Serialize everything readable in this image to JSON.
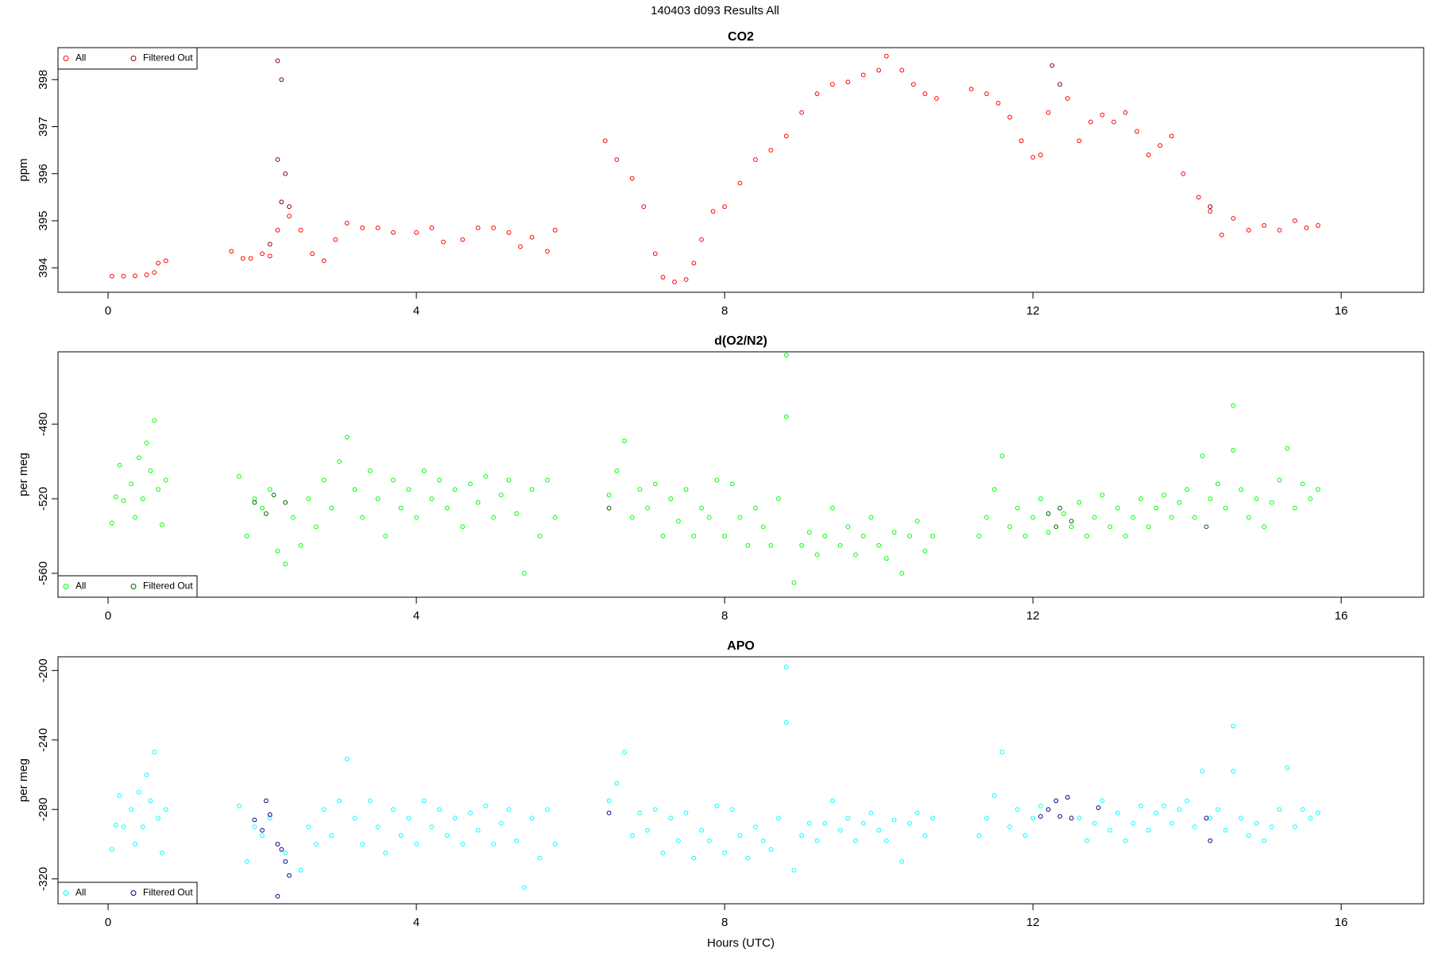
{
  "title": "140403   d093   Results All",
  "chart_data": [
    {
      "type": "scatter",
      "title": "CO2",
      "ylabel": "ppm",
      "legend": "upper left",
      "xlim": [
        -0.65,
        17.07
      ],
      "xticks": [
        0,
        4,
        8,
        12,
        16
      ],
      "ylim": [
        393.48,
        398.68
      ],
      "yticks": [
        394,
        395,
        396,
        397,
        398
      ],
      "series": [
        {
          "name": "All",
          "color": "#ff0000",
          "x": [
            0.05,
            0.2,
            0.35,
            0.5,
            0.6,
            0.65,
            0.75,
            1.6,
            1.75,
            1.85,
            2.0,
            2.1,
            2.2,
            2.35,
            2.5,
            2.65,
            2.8,
            2.95,
            3.1,
            3.3,
            3.5,
            3.7,
            4.0,
            4.2,
            4.35,
            4.6,
            4.8,
            5.0,
            5.2,
            5.35,
            5.5,
            5.7,
            5.8,
            6.45,
            6.6,
            6.8,
            6.95,
            7.1,
            7.2,
            7.35,
            7.5,
            7.6,
            7.7,
            7.85,
            8.0,
            8.2,
            8.4,
            8.6,
            8.8,
            9.0,
            9.2,
            9.4,
            9.6,
            9.8,
            10.0,
            10.1,
            10.3,
            10.45,
            10.6,
            10.75,
            11.2,
            11.4,
            11.55,
            11.7,
            11.85,
            12.0,
            12.1,
            12.2,
            12.45,
            12.6,
            12.75,
            12.9,
            13.05,
            13.2,
            13.35,
            13.5,
            13.65,
            13.8,
            13.95,
            14.15,
            14.3,
            14.45,
            14.6,
            14.8,
            15.0,
            15.2,
            15.4,
            15.55,
            15.7
          ],
          "values": [
            393.82,
            393.82,
            393.83,
            393.85,
            393.9,
            394.1,
            394.15,
            394.35,
            394.2,
            394.2,
            394.3,
            394.25,
            394.8,
            395.1,
            394.8,
            394.3,
            394.15,
            394.6,
            394.95,
            394.85,
            394.85,
            394.75,
            394.75,
            394.85,
            394.55,
            394.6,
            394.85,
            394.85,
            394.75,
            394.45,
            394.65,
            394.35,
            394.8,
            396.7,
            396.3,
            395.9,
            395.3,
            394.3,
            393.8,
            393.7,
            393.75,
            394.1,
            394.6,
            395.2,
            395.3,
            395.8,
            396.3,
            396.5,
            396.8,
            397.3,
            397.7,
            397.9,
            397.95,
            398.1,
            398.2,
            398.5,
            398.2,
            397.9,
            397.7,
            397.6,
            397.8,
            397.7,
            397.5,
            397.2,
            396.7,
            396.35,
            396.4,
            397.3,
            397.6,
            396.7,
            397.1,
            397.25,
            397.1,
            397.3,
            396.9,
            396.4,
            396.6,
            396.8,
            396.0,
            395.5,
            395.2,
            394.7,
            395.05,
            394.8,
            394.9,
            394.8,
            395.0,
            394.85,
            394.9
          ]
        },
        {
          "name": "Filtered Out",
          "color": "#8b0000",
          "x": [
            2.2,
            2.25,
            2.2,
            2.3,
            2.25,
            2.35,
            2.1,
            12.25,
            12.35,
            14.3
          ],
          "values": [
            398.4,
            398.0,
            396.3,
            396.0,
            395.4,
            395.3,
            394.5,
            398.3,
            397.9,
            395.3
          ]
        }
      ]
    },
    {
      "type": "scatter",
      "title": "d(O2/N2)",
      "ylabel": "per meg",
      "legend": "lower left",
      "xlim": [
        -0.65,
        17.07
      ],
      "xticks": [
        0,
        4,
        8,
        12,
        16
      ],
      "ylim": [
        -572.8,
        -441.2
      ],
      "yticks": [
        -560,
        -520,
        -480
      ],
      "series": [
        {
          "name": "All",
          "color": "#00ff00",
          "x": [
            0.05,
            0.1,
            0.15,
            0.2,
            0.3,
            0.35,
            0.4,
            0.45,
            0.5,
            0.55,
            0.6,
            0.65,
            0.7,
            0.75,
            1.7,
            1.8,
            1.9,
            2.0,
            2.1,
            2.2,
            2.3,
            2.4,
            2.5,
            2.6,
            2.7,
            2.8,
            2.9,
            3.0,
            3.1,
            3.2,
            3.3,
            3.4,
            3.5,
            3.6,
            3.7,
            3.8,
            3.9,
            4.0,
            4.1,
            4.2,
            4.3,
            4.4,
            4.5,
            4.6,
            4.7,
            4.8,
            4.9,
            5.0,
            5.1,
            5.2,
            5.3,
            5.4,
            5.5,
            5.6,
            5.7,
            5.8,
            6.5,
            6.6,
            6.7,
            6.8,
            6.9,
            7.0,
            7.1,
            7.2,
            7.3,
            7.4,
            7.5,
            7.6,
            7.7,
            7.8,
            7.9,
            8.0,
            8.1,
            8.2,
            8.3,
            8.4,
            8.5,
            8.6,
            8.7,
            8.8,
            8.8,
            8.9,
            9.0,
            9.1,
            9.2,
            9.3,
            9.4,
            9.5,
            9.6,
            9.7,
            9.8,
            9.9,
            10.0,
            10.1,
            10.2,
            10.3,
            10.4,
            10.5,
            10.6,
            10.7,
            11.3,
            11.4,
            11.5,
            11.6,
            11.7,
            11.8,
            11.9,
            12.0,
            12.1,
            12.2,
            12.4,
            12.5,
            12.6,
            12.7,
            12.8,
            12.9,
            13.0,
            13.1,
            13.2,
            13.3,
            13.4,
            13.5,
            13.6,
            13.7,
            13.8,
            13.9,
            14.0,
            14.1,
            14.2,
            14.3,
            14.4,
            14.5,
            14.6,
            14.6,
            14.7,
            14.8,
            14.9,
            15.0,
            15.1,
            15.2,
            15.3,
            15.4,
            15.5,
            15.6,
            15.7
          ],
          "values": [
            -533,
            -519,
            -502,
            -521,
            -512,
            -530,
            -498,
            -520,
            -490,
            -505,
            -478,
            -515,
            -534,
            -510,
            -508,
            -540,
            -520,
            -525,
            -515,
            -548,
            -555,
            -530,
            -545,
            -520,
            -535,
            -510,
            -525,
            -500,
            -487,
            -515,
            -530,
            -505,
            -520,
            -540,
            -510,
            -525,
            -515,
            -530,
            -505,
            -520,
            -510,
            -525,
            -515,
            -535,
            -512,
            -522,
            -508,
            -530,
            -518,
            -510,
            -528,
            -560,
            -515,
            -540,
            -510,
            -530,
            -518,
            -505,
            -489,
            -530,
            -515,
            -525,
            -512,
            -540,
            -520,
            -532,
            -515,
            -540,
            -525,
            -530,
            -510,
            -540,
            -512,
            -530,
            -545,
            -525,
            -535,
            -545,
            -520,
            -443,
            -476,
            -565,
            -545,
            -538,
            -550,
            -540,
            -525,
            -545,
            -535,
            -550,
            -540,
            -530,
            -545,
            -552,
            -538,
            -560,
            -540,
            -532,
            -548,
            -540,
            -540,
            -530,
            -515,
            -497,
            -535,
            -525,
            -540,
            -530,
            -520,
            -538,
            -528,
            -535,
            -522,
            -540,
            -530,
            -518,
            -535,
            -525,
            -540,
            -530,
            -520,
            -535,
            -525,
            -518,
            -530,
            -522,
            -515,
            -530,
            -497,
            -520,
            -512,
            -525,
            -470,
            -494,
            -515,
            -530,
            -520,
            -535,
            -522,
            -510,
            -493,
            -525,
            -512,
            -520,
            -515
          ]
        },
        {
          "name": "Filtered Out",
          "color": "#006400",
          "x": [
            1.9,
            2.05,
            2.15,
            2.3,
            6.5,
            12.2,
            12.3,
            12.35,
            12.5,
            14.25
          ],
          "values": [
            -522,
            -528,
            -518,
            -522,
            -525,
            -528,
            -535,
            -525,
            -532,
            -535
          ]
        }
      ]
    },
    {
      "type": "scatter",
      "title": "APO",
      "ylabel": "per meg",
      "xlabel": "Hours (UTC)",
      "legend": "lower left",
      "xlim": [
        -0.65,
        17.07
      ],
      "xticks": [
        0,
        4,
        8,
        12,
        16
      ],
      "ylim": [
        -334.3,
        -192.1
      ],
      "yticks": [
        -320,
        -280,
        -240,
        -200
      ],
      "series": [
        {
          "name": "All",
          "color": "#00ffff",
          "x": [
            0.05,
            0.1,
            0.15,
            0.2,
            0.3,
            0.35,
            0.4,
            0.45,
            0.5,
            0.55,
            0.6,
            0.65,
            0.7,
            0.75,
            1.7,
            1.8,
            1.9,
            2.0,
            2.1,
            2.3,
            2.5,
            2.6,
            2.7,
            2.8,
            2.9,
            3.0,
            3.1,
            3.2,
            3.3,
            3.4,
            3.5,
            3.6,
            3.7,
            3.8,
            3.9,
            4.0,
            4.1,
            4.2,
            4.3,
            4.4,
            4.5,
            4.6,
            4.7,
            4.8,
            4.9,
            5.0,
            5.1,
            5.2,
            5.3,
            5.4,
            5.5,
            5.6,
            5.7,
            5.8,
            6.5,
            6.6,
            6.7,
            6.8,
            6.9,
            7.0,
            7.1,
            7.2,
            7.3,
            7.4,
            7.5,
            7.6,
            7.7,
            7.8,
            7.9,
            8.0,
            8.1,
            8.2,
            8.3,
            8.4,
            8.5,
            8.6,
            8.7,
            8.8,
            8.8,
            8.9,
            9.0,
            9.1,
            9.2,
            9.3,
            9.4,
            9.5,
            9.6,
            9.7,
            9.8,
            9.9,
            10.0,
            10.1,
            10.2,
            10.3,
            10.4,
            10.5,
            10.6,
            10.7,
            11.3,
            11.4,
            11.5,
            11.6,
            11.7,
            11.8,
            11.9,
            12.0,
            12.1,
            12.6,
            12.7,
            12.8,
            12.9,
            13.0,
            13.1,
            13.2,
            13.3,
            13.4,
            13.5,
            13.6,
            13.7,
            13.8,
            13.9,
            14.0,
            14.1,
            14.2,
            14.3,
            14.4,
            14.5,
            14.6,
            14.6,
            14.7,
            14.8,
            14.9,
            15.0,
            15.1,
            15.2,
            15.3,
            15.4,
            15.5,
            15.6,
            15.7
          ],
          "values": [
            -303,
            -289,
            -272,
            -290,
            -280,
            -300,
            -270,
            -290,
            -260,
            -275,
            -247,
            -285,
            -305,
            -280,
            -278,
            -310,
            -290,
            -295,
            -285,
            -305,
            -315,
            -290,
            -300,
            -280,
            -295,
            -275,
            -251,
            -285,
            -300,
            -275,
            -290,
            -305,
            -280,
            -295,
            -285,
            -300,
            -275,
            -290,
            -280,
            -295,
            -285,
            -300,
            -282,
            -292,
            -278,
            -300,
            -288,
            -280,
            -298,
            -325,
            -285,
            -308,
            -280,
            -300,
            -275,
            -265,
            -247,
            -295,
            -282,
            -292,
            -280,
            -305,
            -285,
            -298,
            -282,
            -308,
            -292,
            -298,
            -278,
            -305,
            -280,
            -295,
            -308,
            -290,
            -298,
            -303,
            -285,
            -198,
            -230,
            -315,
            -295,
            -288,
            -298,
            -288,
            -275,
            -292,
            -285,
            -298,
            -288,
            -282,
            -292,
            -298,
            -286,
            -310,
            -288,
            -282,
            -295,
            -285,
            -295,
            -285,
            -272,
            -247,
            -290,
            -280,
            -295,
            -285,
            -278,
            -285,
            -298,
            -288,
            -275,
            -292,
            -282,
            -298,
            -288,
            -278,
            -292,
            -282,
            -278,
            -288,
            -280,
            -275,
            -290,
            -258,
            -285,
            -280,
            -292,
            -232,
            -258,
            -285,
            -295,
            -288,
            -298,
            -290,
            -280,
            -256,
            -290,
            -280,
            -285,
            -282
          ]
        },
        {
          "name": "Filtered Out",
          "color": "#00008b",
          "x": [
            1.9,
            2.0,
            2.1,
            2.2,
            2.25,
            2.3,
            2.2,
            2.35,
            2.05,
            6.5,
            12.1,
            12.2,
            12.3,
            12.35,
            12.45,
            12.5,
            12.85,
            14.25,
            14.3
          ],
          "values": [
            -286,
            -292,
            -283,
            -300,
            -303,
            -310,
            -330,
            -318,
            -275,
            -282,
            -284,
            -280,
            -275,
            -284,
            -273,
            -285,
            -279,
            -285,
            -298
          ]
        }
      ]
    }
  ]
}
